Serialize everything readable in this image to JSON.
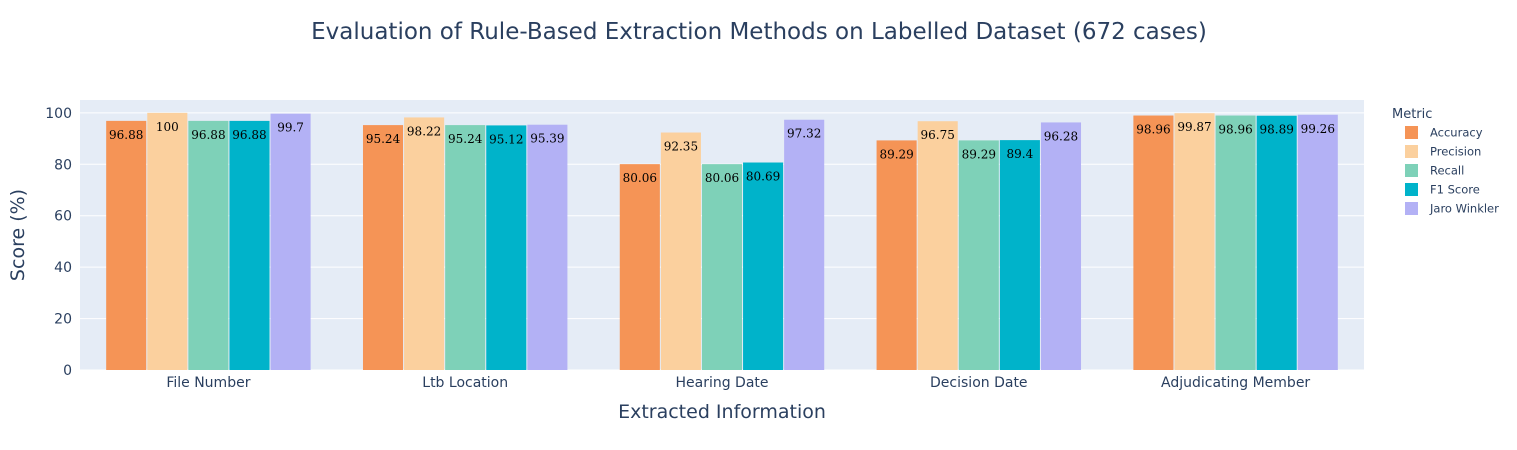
{
  "chart_data": {
    "type": "bar",
    "title": "Evaluation of Rule-Based Extraction Methods on Labelled Dataset (672 cases)",
    "xlabel": "Extracted Information",
    "ylabel": "Score (%)",
    "ylim": [
      0,
      105
    ],
    "yticks": [
      0,
      20,
      40,
      60,
      80,
      100
    ],
    "grid": true,
    "legend_title": "Metric",
    "legend_position": "top-right",
    "categories": [
      "File Number",
      "Ltb Location",
      "Hearing Date",
      "Decision Date",
      "Adjudicating Member"
    ],
    "series": [
      {
        "name": "Accuracy",
        "color": "#F59456",
        "values": [
          96.88,
          95.24,
          80.06,
          89.29,
          98.96
        ]
      },
      {
        "name": "Precision",
        "color": "#FBD09E",
        "values": [
          100,
          98.22,
          92.35,
          96.75,
          99.87
        ]
      },
      {
        "name": "Recall",
        "color": "#7ED1B8",
        "values": [
          96.88,
          95.24,
          80.06,
          89.29,
          98.96
        ]
      },
      {
        "name": "F1 Score",
        "color": "#00B3CA",
        "values": [
          96.88,
          95.12,
          80.69,
          89.4,
          98.89
        ]
      },
      {
        "name": "Jaro Winkler",
        "color": "#B3B1F5",
        "values": [
          99.7,
          95.39,
          97.32,
          96.28,
          99.26
        ]
      }
    ]
  }
}
